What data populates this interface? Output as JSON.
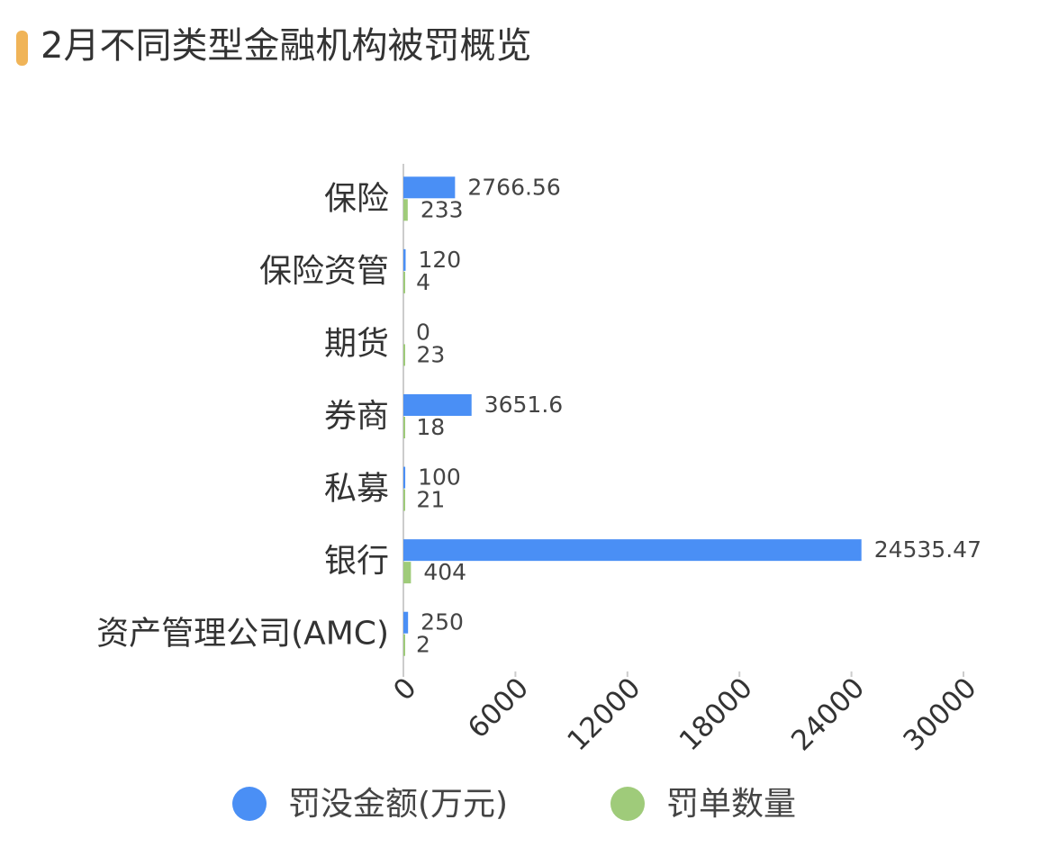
{
  "chart_data": {
    "type": "bar",
    "orientation": "horizontal",
    "title": "2月不同类型金融机构被罚概览",
    "categories": [
      "保险",
      "保险资管",
      "期货",
      "券商",
      "私募",
      "银行",
      "资产管理公司(AMC)"
    ],
    "series": [
      {
        "name": "罚没金额(万元)",
        "color": "#4a8ff5",
        "values": [
          2766.56,
          120,
          0,
          3651.6,
          100,
          24535.47,
          250
        ]
      },
      {
        "name": "罚单数量",
        "color": "#9fcb7a",
        "values": [
          233,
          4,
          23,
          18,
          21,
          404,
          2
        ]
      }
    ],
    "xlim": [
      0,
      30000
    ],
    "xticks": [
      0,
      6000,
      12000,
      18000,
      24000,
      30000
    ],
    "grid": false,
    "legend": "bottom"
  }
}
